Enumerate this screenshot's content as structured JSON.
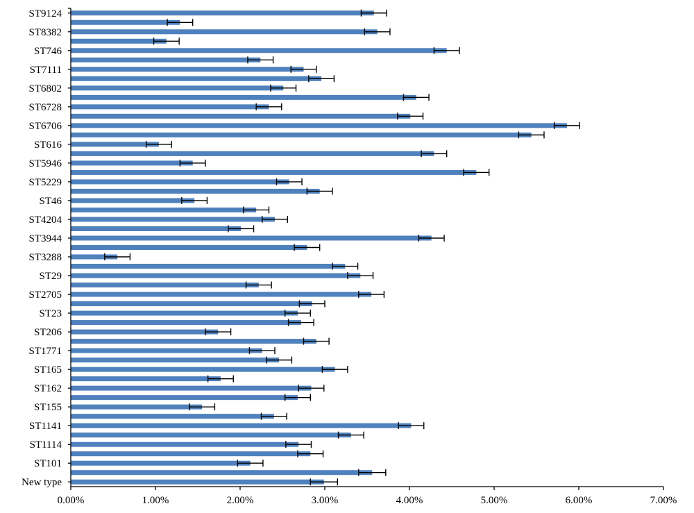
{
  "chart_data": {
    "type": "bar",
    "orientation": "horizontal",
    "title": "",
    "xlabel": "",
    "ylabel": "",
    "xlim": [
      0,
      7
    ],
    "x_unit": "%",
    "x_ticks": [
      "0.00%",
      "1.00%",
      "2.00%",
      "3.00%",
      "4.00%",
      "5.00%",
      "6.00%",
      "7.00%"
    ],
    "category_labels_order": "bottom-to-top",
    "categories": [
      "New type",
      "",
      "ST101",
      "",
      "ST1114",
      "",
      "ST1141",
      "",
      "ST155",
      "",
      "ST162",
      "",
      "ST165",
      "",
      "ST1771",
      "",
      "ST206",
      "",
      "ST23",
      "",
      "ST2705",
      "",
      "ST29",
      "",
      "ST3288",
      "",
      "ST3944",
      "",
      "ST4204",
      "",
      "ST46",
      "",
      "ST5229",
      "",
      "ST5946",
      "",
      "ST616",
      "",
      "ST6706",
      "",
      "ST6728",
      "",
      "ST6802",
      "",
      "ST7111",
      "",
      "ST746",
      "",
      "ST8382",
      "",
      "ST9124"
    ],
    "values": [
      2.99,
      3.56,
      2.12,
      2.83,
      2.69,
      3.31,
      4.02,
      2.4,
      1.55,
      2.68,
      2.84,
      1.77,
      3.12,
      2.46,
      2.26,
      2.9,
      1.74,
      2.72,
      2.68,
      2.85,
      3.55,
      2.22,
      3.42,
      3.24,
      0.55,
      2.79,
      4.26,
      2.01,
      2.41,
      2.19,
      1.46,
      2.94,
      2.58,
      4.79,
      1.44,
      4.29,
      1.04,
      5.44,
      5.86,
      4.01,
      2.34,
      4.08,
      2.51,
      2.96,
      2.75,
      2.24,
      4.44,
      1.13,
      3.62,
      1.29,
      3.58
    ],
    "errors": [
      0.16,
      0.16,
      0.15,
      0.15,
      0.15,
      0.15,
      0.15,
      0.15,
      0.15,
      0.15,
      0.15,
      0.15,
      0.15,
      0.15,
      0.15,
      0.15,
      0.15,
      0.15,
      0.15,
      0.15,
      0.15,
      0.15,
      0.15,
      0.15,
      0.15,
      0.15,
      0.15,
      0.15,
      0.15,
      0.15,
      0.15,
      0.15,
      0.15,
      0.15,
      0.15,
      0.15,
      0.15,
      0.15,
      0.15,
      0.15,
      0.15,
      0.15,
      0.15,
      0.15,
      0.15,
      0.15,
      0.15,
      0.15,
      0.15,
      0.15,
      0.15
    ],
    "bar_color": "#4f81bd",
    "error_bar_color": "#000000",
    "grid": false,
    "legend": "none"
  }
}
